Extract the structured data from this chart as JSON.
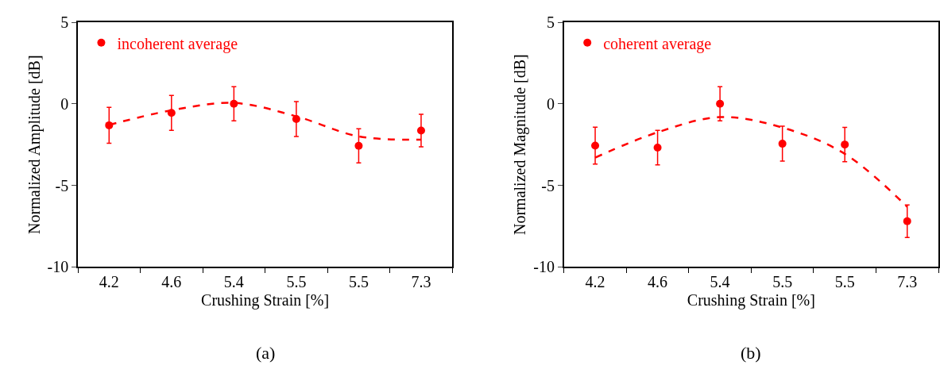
{
  "chart_data": [
    {
      "type": "scatter",
      "xlabel": "Crushing Strain [%]",
      "ylabel": "Normalized Amplitude [dB]",
      "categories": [
        "4.2",
        "4.6",
        "5.4",
        "5.5",
        "5.5",
        "7.3"
      ],
      "ylim": [
        -10,
        5
      ],
      "yticks": [
        -10,
        -5,
        0,
        5
      ],
      "legend": "top left",
      "annotations": [
        "(a)"
      ],
      "series": [
        {
          "name": "incoherent average",
          "marker": "circle",
          "color": "#ff0000",
          "values": [
            -1.32,
            -0.56,
            0,
            -0.94,
            -2.58,
            -1.64
          ],
          "errors": [
            1.1,
            1.07,
            1.05,
            1.07,
            1.05,
            1.0
          ]
        },
        {
          "type": "line",
          "line_style": "dashed",
          "marker": "none",
          "color": "#ff0000",
          "values": [
            -1.3,
            -0.4,
            0.05,
            -0.77,
            -2.0,
            -2.2
          ]
        }
      ]
    },
    {
      "type": "scatter",
      "xlabel": "Crushing Strain [%]",
      "ylabel": "Normalized Magnitude [dB]",
      "categories": [
        "4.2",
        "4.6",
        "5.4",
        "5.5",
        "5.5",
        "7.3"
      ],
      "ylim": [
        -10,
        5
      ],
      "yticks": [
        -10,
        -5,
        0,
        5
      ],
      "legend": "top left",
      "annotations": [
        "(b)"
      ],
      "series": [
        {
          "name": "coherent average",
          "marker": "circle",
          "color": "#ff0000",
          "values": [
            -2.57,
            -2.69,
            0,
            -2.45,
            -2.5,
            -7.2
          ],
          "errors": [
            1.13,
            1.06,
            1.05,
            1.07,
            1.05,
            1.0
          ]
        },
        {
          "type": "line",
          "line_style": "dashed",
          "marker": "none",
          "color": "#ff0000",
          "values": [
            -3.3,
            -1.75,
            -0.82,
            -1.46,
            -3.07,
            -6.32
          ]
        }
      ]
    }
  ]
}
